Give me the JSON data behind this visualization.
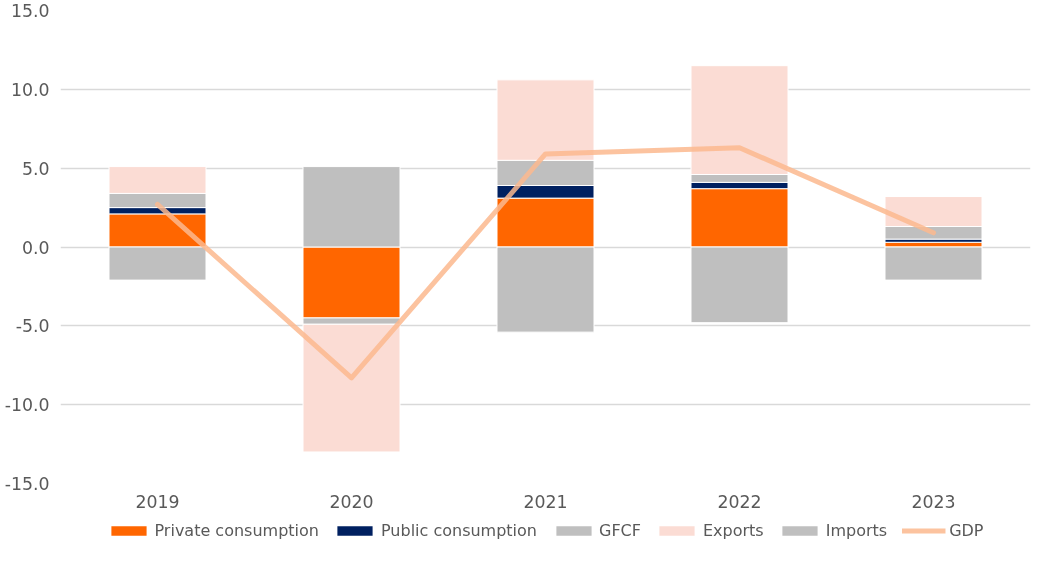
{
  "chart_data": {
    "type": "bar",
    "stacked": true,
    "categories": [
      "2019",
      "2020",
      "2021",
      "2022",
      "2023"
    ],
    "series": [
      {
        "name": "Private consumption",
        "color": "#ff6600",
        "values": [
          2.1,
          -4.5,
          3.1,
          3.7,
          0.3
        ]
      },
      {
        "name": "Public consumption",
        "color": "#002060",
        "values": [
          0.4,
          null,
          0.8,
          0.4,
          0.2
        ]
      },
      {
        "name": "GFCF",
        "color": "#bfbfbf",
        "values": [
          0.9,
          -0.4,
          1.6,
          0.5,
          0.8
        ]
      },
      {
        "name": "Exports",
        "color": "#fbdcd4",
        "values": [
          1.7,
          -8.1,
          5.1,
          6.9,
          1.9
        ]
      },
      {
        "name": "Imports",
        "color": "#bfbfbf",
        "values": [
          -2.1,
          5.1,
          -5.4,
          -4.8,
          -2.1
        ]
      },
      {
        "name": "GDP",
        "type": "line",
        "color": "#fbb88e",
        "values": [
          2.7,
          -8.3,
          5.9,
          6.3,
          0.9
        ]
      }
    ],
    "ylim": [
      -15,
      15
    ],
    "yticks": [
      {
        "value": -15,
        "label": "-15.0"
      },
      {
        "value": -10,
        "label": "-10.0"
      },
      {
        "value": -5,
        "label": "-5.0"
      },
      {
        "value": 0,
        "label": "0.0"
      },
      {
        "value": 5,
        "label": "5.0"
      },
      {
        "value": 10,
        "label": "10.0"
      },
      {
        "value": 15,
        "label": "15.0"
      }
    ],
    "grid": "y",
    "legend": "bottom"
  }
}
